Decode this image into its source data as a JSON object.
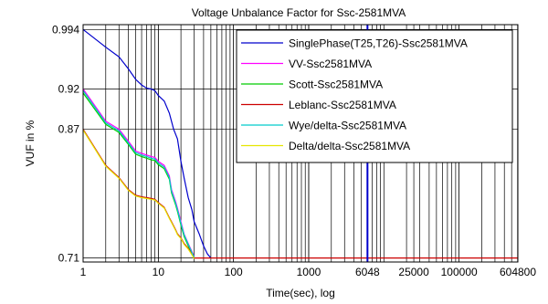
{
  "chart_data": {
    "type": "line",
    "title": "Voltage Unbalance Factor for Ssc-2581MVA",
    "xlabel": "Time(sec), log",
    "ylabel": "VUF in %",
    "x_scale": "log",
    "xlim": [
      1,
      604800
    ],
    "ylim": [
      0.705,
      1.0
    ],
    "x_ticks": [
      1,
      10,
      100,
      1000,
      6048,
      25000,
      100000,
      604800
    ],
    "x_tick_labels": [
      "1",
      "10",
      "100",
      "1000",
      "6048",
      "25000",
      "100000",
      "604800"
    ],
    "y_ticks": [
      0.71,
      0.87,
      0.92,
      0.994
    ],
    "y_tick_labels": [
      "0.71",
      "0.87",
      "0.92",
      "0.994"
    ],
    "grid": true,
    "legend_position": "top-right",
    "series": [
      {
        "name": "SinglePhase(T25,T26)-Ssc2581MVA",
        "color": "#0000cc",
        "x": [
          1,
          2,
          3,
          4,
          5,
          6,
          7,
          8,
          9,
          10,
          12,
          14,
          16,
          18,
          20,
          22,
          25,
          28,
          30,
          35,
          40,
          45,
          50
        ],
        "y": [
          0.994,
          0.972,
          0.96,
          0.945,
          0.932,
          0.925,
          0.921,
          0.92,
          0.918,
          0.912,
          0.905,
          0.89,
          0.87,
          0.858,
          0.83,
          0.81,
          0.785,
          0.77,
          0.755,
          0.74,
          0.725,
          0.715,
          0.71
        ]
      },
      {
        "name": "VV-Ssc2581MVA",
        "color": "#ff00ff",
        "x": [
          1,
          2,
          3,
          4,
          5,
          6,
          7,
          8,
          9,
          10,
          12,
          14,
          15,
          17,
          18,
          20,
          22,
          25,
          28,
          30
        ],
        "y": [
          0.92,
          0.88,
          0.87,
          0.855,
          0.843,
          0.84,
          0.838,
          0.836,
          0.835,
          0.83,
          0.825,
          0.812,
          0.795,
          0.78,
          0.772,
          0.755,
          0.74,
          0.728,
          0.718,
          0.712
        ]
      },
      {
        "name": "Scott-Ssc2581MVA",
        "color": "#00cc00",
        "x": [
          1,
          2,
          3,
          4,
          5,
          6,
          7,
          8,
          9,
          10,
          12,
          14,
          15,
          17,
          18,
          20,
          22,
          25,
          28,
          30
        ],
        "y": [
          0.915,
          0.876,
          0.866,
          0.851,
          0.839,
          0.836,
          0.834,
          0.832,
          0.831,
          0.826,
          0.821,
          0.808,
          0.791,
          0.776,
          0.768,
          0.751,
          0.737,
          0.725,
          0.716,
          0.711
        ]
      },
      {
        "name": "Leblanc-Ssc2581MVA",
        "color": "#cc0000",
        "x": [
          1,
          2,
          3,
          4,
          5,
          6,
          7,
          8,
          9,
          10,
          12,
          14,
          15,
          17,
          18,
          20,
          22,
          25,
          28,
          30,
          604800
        ],
        "y": [
          0.87,
          0.825,
          0.81,
          0.795,
          0.788,
          0.786,
          0.785,
          0.784,
          0.783,
          0.779,
          0.773,
          0.76,
          0.755,
          0.745,
          0.74,
          0.735,
          0.728,
          0.722,
          0.715,
          0.71,
          0.71
        ]
      },
      {
        "name": "Wye/delta-Ssc2581MVA",
        "color": "#00cccc",
        "x": [
          1,
          2,
          3,
          4,
          5,
          6,
          7,
          8,
          9,
          10,
          12,
          14,
          15,
          17,
          18,
          20,
          22,
          25,
          28,
          30
        ],
        "y": [
          0.918,
          0.878,
          0.868,
          0.853,
          0.841,
          0.838,
          0.836,
          0.834,
          0.833,
          0.828,
          0.823,
          0.81,
          0.793,
          0.778,
          0.77,
          0.753,
          0.739,
          0.727,
          0.717,
          0.711
        ]
      },
      {
        "name": "Delta/delta-Ssc2581MVA",
        "color": "#e6e600",
        "x": [
          1,
          2,
          3,
          4,
          5,
          6,
          7,
          8,
          9,
          10,
          12,
          14,
          15,
          17,
          18,
          20,
          22,
          25,
          28,
          30
        ],
        "y": [
          0.869,
          0.824,
          0.809,
          0.794,
          0.787,
          0.785,
          0.784,
          0.783,
          0.782,
          0.778,
          0.772,
          0.759,
          0.754,
          0.744,
          0.739,
          0.734,
          0.727,
          0.721,
          0.714,
          0.709
        ]
      }
    ],
    "annotations": [
      {
        "type": "vline",
        "x": 6048,
        "color": "#0000cc"
      }
    ]
  }
}
